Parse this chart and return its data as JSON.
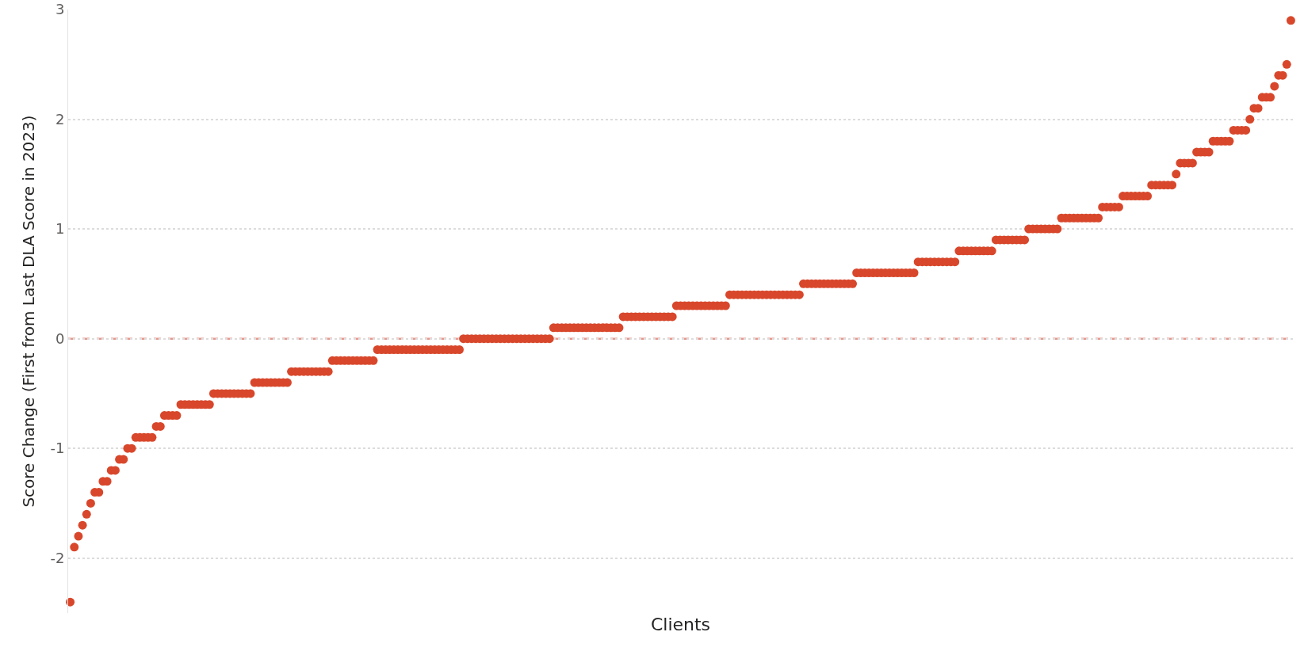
{
  "chart_data": {
    "type": "scatter",
    "xlabel": "Clients",
    "ylabel": "Score Change (First from Last DLA Score in 2023)",
    "categories": [
      null,
      null,
      null,
      null,
      null,
      null,
      null,
      null,
      null,
      null,
      null,
      null,
      null,
      null,
      null,
      null,
      null,
      null,
      null,
      null,
      null,
      null,
      null,
      null,
      null,
      null,
      null,
      null,
      null,
      null,
      null,
      null,
      null,
      null,
      null,
      null,
      null,
      null,
      null,
      null,
      null,
      null,
      null,
      null,
      null,
      null,
      null,
      null,
      null,
      null,
      null,
      null,
      null,
      null,
      null,
      null,
      null,
      null,
      null,
      null,
      null,
      null,
      null,
      null,
      null,
      null,
      null,
      null,
      null,
      null,
      null,
      null,
      null,
      null,
      null,
      null,
      null,
      null,
      null,
      null,
      null,
      null,
      null,
      null,
      null,
      null,
      null,
      null,
      null,
      null,
      null,
      null,
      null,
      null,
      null,
      null,
      null,
      null,
      null,
      null,
      null,
      null,
      null,
      null,
      null,
      null,
      null,
      null,
      null,
      null,
      null,
      null,
      null,
      null,
      null,
      null,
      null,
      null,
      null,
      null,
      null,
      null,
      null,
      null,
      null,
      null,
      null,
      null,
      null,
      null,
      null,
      null,
      null,
      null,
      null,
      null,
      null,
      null,
      null,
      null,
      null,
      null,
      null,
      null,
      null,
      null,
      null,
      null,
      null,
      null,
      null,
      null,
      null,
      null,
      null,
      null,
      null,
      null,
      null,
      null,
      null,
      null,
      null,
      null,
      null,
      null,
      null,
      null,
      null,
      null,
      null,
      null,
      null,
      null,
      null,
      null,
      null,
      null,
      null,
      null,
      null,
      null,
      null,
      null,
      null,
      null,
      null,
      null,
      null,
      null,
      null,
      null,
      null,
      null,
      null,
      null,
      null,
      null,
      null,
      null,
      null,
      null,
      null,
      null,
      null,
      null,
      null,
      null,
      null,
      null,
      null,
      null,
      null,
      null,
      null,
      null,
      null,
      null,
      null,
      null,
      null,
      null,
      null,
      null,
      null,
      null,
      null,
      null,
      null,
      null,
      null,
      null,
      null,
      null,
      null,
      null,
      null,
      null,
      null,
      null,
      null,
      null,
      null,
      null,
      null,
      null,
      null,
      null,
      null,
      null,
      null,
      null,
      null,
      null,
      null,
      null,
      null,
      null,
      null,
      null,
      null,
      null,
      null,
      null,
      null,
      null,
      null,
      null,
      null,
      null,
      null,
      null,
      null,
      null,
      null,
      null,
      null,
      null,
      null,
      null,
      null,
      null,
      null,
      null,
      null,
      null,
      null,
      null,
      null,
      null,
      null,
      null,
      null,
      null,
      null,
      null,
      null,
      null,
      null
    ],
    "values": [
      -2.4,
      -1.9,
      -1.8,
      -1.7,
      -1.6,
      -1.5,
      -1.4,
      -1.4,
      -1.3,
      -1.3,
      -1.2,
      -1.2,
      -1.1,
      -1.1,
      -1.0,
      -1.0,
      -0.9,
      -0.9,
      -0.9,
      -0.9,
      -0.9,
      -0.8,
      -0.8,
      -0.7,
      -0.7,
      -0.7,
      -0.7,
      -0.6,
      -0.6,
      -0.6,
      -0.6,
      -0.6,
      -0.6,
      -0.6,
      -0.6,
      -0.5,
      -0.5,
      -0.5,
      -0.5,
      -0.5,
      -0.5,
      -0.5,
      -0.5,
      -0.5,
      -0.5,
      -0.4,
      -0.4,
      -0.4,
      -0.4,
      -0.4,
      -0.4,
      -0.4,
      -0.4,
      -0.4,
      -0.3,
      -0.3,
      -0.3,
      -0.3,
      -0.3,
      -0.3,
      -0.3,
      -0.3,
      -0.3,
      -0.3,
      -0.2,
      -0.2,
      -0.2,
      -0.2,
      -0.2,
      -0.2,
      -0.2,
      -0.2,
      -0.2,
      -0.2,
      -0.2,
      -0.1,
      -0.1,
      -0.1,
      -0.1,
      -0.1,
      -0.1,
      -0.1,
      -0.1,
      -0.1,
      -0.1,
      -0.1,
      -0.1,
      -0.1,
      -0.1,
      -0.1,
      -0.1,
      -0.1,
      -0.1,
      -0.1,
      -0.1,
      -0.1,
      0,
      0,
      0,
      0,
      0,
      0,
      0,
      0,
      0,
      0,
      0,
      0,
      0,
      0,
      0,
      0,
      0,
      0,
      0,
      0,
      0,
      0,
      0.1,
      0.1,
      0.1,
      0.1,
      0.1,
      0.1,
      0.1,
      0.1,
      0.1,
      0.1,
      0.1,
      0.1,
      0.1,
      0.1,
      0.1,
      0.1,
      0.1,
      0.2,
      0.2,
      0.2,
      0.2,
      0.2,
      0.2,
      0.2,
      0.2,
      0.2,
      0.2,
      0.2,
      0.2,
      0.2,
      0.3,
      0.3,
      0.3,
      0.3,
      0.3,
      0.3,
      0.3,
      0.3,
      0.3,
      0.3,
      0.3,
      0.3,
      0.3,
      0.4,
      0.4,
      0.4,
      0.4,
      0.4,
      0.4,
      0.4,
      0.4,
      0.4,
      0.4,
      0.4,
      0.4,
      0.4,
      0.4,
      0.4,
      0.4,
      0.4,
      0.4,
      0.5,
      0.5,
      0.5,
      0.5,
      0.5,
      0.5,
      0.5,
      0.5,
      0.5,
      0.5,
      0.5,
      0.5,
      0.5,
      0.6,
      0.6,
      0.6,
      0.6,
      0.6,
      0.6,
      0.6,
      0.6,
      0.6,
      0.6,
      0.6,
      0.6,
      0.6,
      0.6,
      0.6,
      0.7,
      0.7,
      0.7,
      0.7,
      0.7,
      0.7,
      0.7,
      0.7,
      0.7,
      0.7,
      0.8,
      0.8,
      0.8,
      0.8,
      0.8,
      0.8,
      0.8,
      0.8,
      0.8,
      0.9,
      0.9,
      0.9,
      0.9,
      0.9,
      0.9,
      0.9,
      0.9,
      1,
      1,
      1,
      1,
      1,
      1,
      1,
      1,
      1.1,
      1.1,
      1.1,
      1.1,
      1.1,
      1.1,
      1.1,
      1.1,
      1.1,
      1.1,
      1.2,
      1.2,
      1.2,
      1.2,
      1.2,
      1.3,
      1.3,
      1.3,
      1.3,
      1.3,
      1.3,
      1.3,
      1.4,
      1.4,
      1.4,
      1.4,
      1.4,
      1.4,
      1.5,
      1.6,
      1.6,
      1.6,
      1.6,
      1.7,
      1.7,
      1.7,
      1.7,
      1.8,
      1.8,
      1.8,
      1.8,
      1.8,
      1.9,
      1.9,
      1.9,
      1.9,
      2,
      2.1,
      2.1,
      2.2,
      2.2,
      2.2,
      2.3,
      2.4,
      2.4,
      2.5,
      2.9
    ],
    "color": "#d8472b",
    "marker": "circle",
    "ylim": [
      -2.5,
      3
    ],
    "yticks": [
      -2,
      -1,
      0,
      1,
      2,
      3
    ],
    "grid": "y",
    "ref_lines": [
      {
        "axis": "y",
        "value": 0,
        "color": "#e8958a",
        "line_style": "dashed"
      }
    ]
  }
}
